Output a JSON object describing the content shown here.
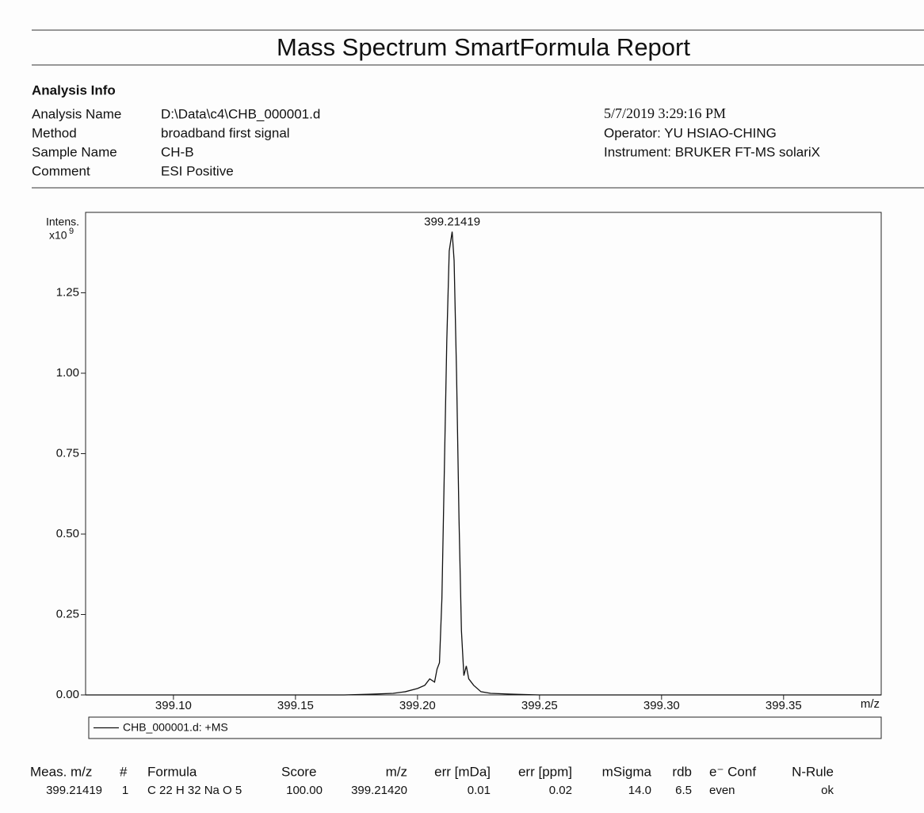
{
  "header": {
    "title": "Mass Spectrum SmartFormula Report"
  },
  "info": {
    "heading": "Analysis Info",
    "rows": [
      [
        "Analysis Name",
        "D:\\Data\\c4\\CHB_000001.d"
      ],
      [
        "Method",
        "broadband first signal"
      ],
      [
        "Sample Name",
        "CH-B"
      ],
      [
        "Comment",
        "ESI Positive"
      ]
    ],
    "right": [
      "5/7/2019 3:29:16 PM",
      "Operator: YU HSIAO-CHING",
      "Instrument: BRUKER   FT-MS  solariX"
    ]
  },
  "chart_data": {
    "type": "line",
    "y_label": "Intens.",
    "y_unit": "x10",
    "y_exponent": "9",
    "x_label": "m/z",
    "annotation": "399.21419",
    "xlim": [
      399.064,
      399.39
    ],
    "ylim": [
      0,
      1.5
    ],
    "xticks": [
      {
        "value": 399.1,
        "label": "399.10"
      },
      399.15,
      {
        "value": 399.2,
        "label": "399.20"
      },
      399.25,
      {
        "value": 399.3,
        "label": "399.30"
      },
      399.35
    ],
    "yticks": [
      {
        "value": 0,
        "label": "0.00"
      },
      {
        "value": 0.25,
        "label": "0.25"
      },
      {
        "value": 0.5,
        "label": "0.50"
      },
      {
        "value": 0.75,
        "label": "0.75"
      },
      {
        "value": 1,
        "label": "1.00"
      },
      {
        "value": 1.25,
        "label": "1.25"
      }
    ],
    "series": [
      {
        "name": "CHB_000001.d: +MS",
        "color": "#111111",
        "x": [
          399.064,
          399.17,
          399.18,
          399.19,
          399.195,
          399.2,
          399.203,
          399.205,
          399.207,
          399.208,
          399.209,
          399.21,
          399.211,
          399.212,
          399.213,
          399.2142,
          399.215,
          399.216,
          399.217,
          399.218,
          399.219,
          399.22,
          399.221,
          399.223,
          399.226,
          399.23,
          399.24,
          399.25,
          399.39
        ],
        "values": [
          0,
          0,
          0.002,
          0.005,
          0.01,
          0.02,
          0.03,
          0.05,
          0.04,
          0.08,
          0.1,
          0.3,
          0.7,
          1.1,
          1.38,
          1.44,
          1.35,
          1.0,
          0.55,
          0.2,
          0.06,
          0.09,
          0.05,
          0.03,
          0.01,
          0.005,
          0.002,
          0,
          0
        ]
      }
    ]
  },
  "table": {
    "headers": [
      "Meas. m/z",
      "#",
      "Formula",
      "Score",
      "m/z",
      "err [mDa]",
      "err [ppm]",
      "mSigma",
      "rdb",
      "e⁻ Conf",
      "N-Rule"
    ],
    "rows": [
      [
        "399.21419",
        "1",
        "C 22 H 32 Na O 5",
        "100.00",
        "399.21420",
        "0.01",
        "0.02",
        "14.0",
        "6.5",
        "even",
        "ok"
      ]
    ]
  }
}
